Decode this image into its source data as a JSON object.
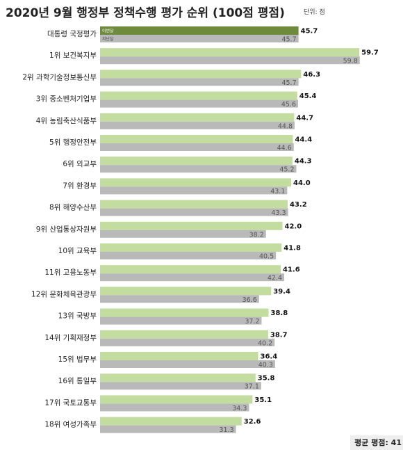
{
  "title": "2020년 9월 행정부 정책수행 평가 순위 (100점 평점)",
  "unit": "단위: 점",
  "footer": "평균 평점: 41",
  "colors": {
    "this_month_highlight": "#6e8b3d",
    "this_month": "#c3dca0",
    "last_month": "#b9b9b9"
  },
  "chart_data": {
    "type": "bar",
    "orientation": "horizontal",
    "title": "2020년 9월 행정부 정책수행 평가 순위 (100점 평점)",
    "categories": [
      "대통령 국정평가",
      "1위 보건복지부",
      "2위 과학기술정보통신부",
      "3위 중소벤처기업부",
      "4위 농림축산식품부",
      "5위 행정안전부",
      "6위 외교부",
      "7위 환경부",
      "8위 해양수산부",
      "9위 산업통상자원부",
      "10위 교육부",
      "11위 고용노동부",
      "12위 문화체육관광부",
      "13위 국방부",
      "14위 기획재정부",
      "15위 법무부",
      "16위 통일부",
      "17위 국토교통부",
      "18위 여성가족부"
    ],
    "series": [
      {
        "name": "이번달",
        "values": [
          45.7,
          59.7,
          46.3,
          45.4,
          44.7,
          44.4,
          44.3,
          44.0,
          43.2,
          42.0,
          41.8,
          41.6,
          39.4,
          38.8,
          38.7,
          36.4,
          35.8,
          35.1,
          32.6
        ]
      },
      {
        "name": "지난달",
        "values": [
          45.7,
          59.8,
          45.7,
          45.6,
          44.8,
          44.6,
          45.2,
          43.1,
          43.3,
          38.2,
          40.5,
          42.4,
          36.6,
          37.2,
          40.2,
          40.3,
          37.1,
          34.3,
          31.3
        ]
      }
    ],
    "xlim": [
      0,
      60
    ],
    "grid": false,
    "legend": "inside first bar"
  }
}
